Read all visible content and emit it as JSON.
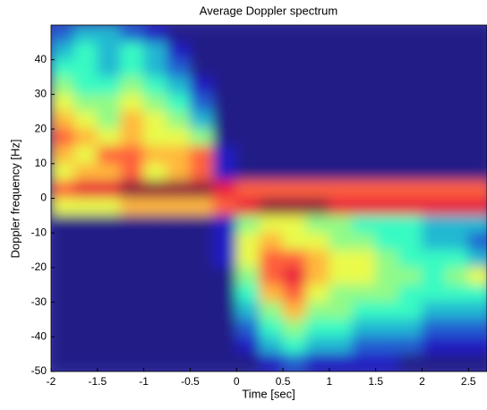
{
  "chart_data": {
    "type": "heatmap",
    "title": "Average Doppler spectrum",
    "x_label": "Time [sec]",
    "y_label": "Doppler frequency [Hz]",
    "x": [
      -1.875,
      -1.625,
      -1.375,
      -1.125,
      -0.875,
      -0.625,
      -0.375,
      -0.125,
      0.125,
      0.375,
      0.625,
      0.875,
      1.125,
      1.375,
      1.625,
      1.875,
      2.125,
      2.375,
      2.625
    ],
    "y": [
      47.5,
      42.5,
      37.5,
      32.5,
      27.5,
      22.5,
      17.5,
      12.5,
      7.5,
      2.5,
      -2.5,
      -7.5,
      -12.5,
      -17.5,
      -22.5,
      -27.5,
      -32.5,
      -37.5,
      -42.5,
      -47.5
    ],
    "z": [
      [
        2,
        3,
        3,
        2,
        1,
        0,
        0,
        0,
        0,
        0,
        0,
        0,
        0,
        0,
        0,
        0,
        0,
        0,
        0
      ],
      [
        3,
        4,
        3,
        4,
        3,
        1,
        0,
        0,
        0,
        0,
        0,
        0,
        0,
        0,
        0,
        0,
        0,
        0,
        0
      ],
      [
        4,
        4,
        3,
        4,
        3,
        2,
        0,
        0,
        0,
        0,
        0,
        0,
        0,
        0,
        0,
        0,
        0,
        0,
        0
      ],
      [
        5,
        4,
        4,
        5,
        4,
        3,
        1,
        0,
        0,
        0,
        0,
        0,
        0,
        0,
        0,
        0,
        0,
        0,
        0
      ],
      [
        6,
        5,
        5,
        6,
        5,
        4,
        2,
        0,
        0,
        0,
        0,
        0,
        0,
        0,
        0,
        0,
        0,
        0,
        0
      ],
      [
        7,
        6,
        5,
        7,
        6,
        5,
        3,
        0,
        0,
        0,
        0,
        0,
        0,
        0,
        0,
        0,
        0,
        0,
        0
      ],
      [
        8,
        7,
        6,
        7,
        6,
        6,
        5,
        0,
        0,
        0,
        0,
        0,
        0,
        0,
        0,
        0,
        0,
        0,
        0
      ],
      [
        7,
        6,
        8,
        8,
        7,
        7,
        8,
        1,
        0,
        0,
        0,
        0,
        0,
        0,
        0,
        0,
        0,
        0,
        0
      ],
      [
        6,
        7,
        7,
        8,
        6,
        7,
        8,
        1,
        0,
        0,
        0,
        0,
        0,
        0,
        0,
        0,
        0,
        0,
        0
      ],
      [
        8,
        9,
        9,
        10,
        10,
        10,
        10,
        9,
        8,
        8,
        8,
        8,
        8,
        8,
        8,
        8,
        8,
        8,
        8
      ],
      [
        6,
        6,
        6,
        7,
        7,
        7,
        7,
        8,
        9,
        10,
        10,
        10,
        9,
        9,
        9,
        9,
        9,
        9,
        9
      ],
      [
        0,
        0,
        0,
        0,
        0,
        0,
        0,
        1,
        5,
        6,
        6,
        5,
        5,
        4,
        4,
        4,
        3,
        3,
        3
      ],
      [
        0,
        0,
        0,
        0,
        0,
        0,
        0,
        1,
        6,
        7,
        6,
        6,
        5,
        5,
        4,
        4,
        3,
        3,
        2
      ],
      [
        0,
        0,
        0,
        0,
        0,
        0,
        0,
        1,
        6,
        8,
        8,
        7,
        6,
        6,
        5,
        4,
        4,
        4,
        3
      ],
      [
        0,
        0,
        0,
        0,
        0,
        0,
        0,
        0,
        5,
        8,
        9,
        7,
        6,
        6,
        5,
        5,
        4,
        5,
        6
      ],
      [
        0,
        0,
        0,
        0,
        0,
        0,
        0,
        0,
        4,
        7,
        8,
        6,
        5,
        5,
        5,
        4,
        4,
        4,
        4
      ],
      [
        0,
        0,
        0,
        0,
        0,
        0,
        0,
        0,
        3,
        5,
        7,
        5,
        5,
        4,
        4,
        4,
        3,
        3,
        3
      ],
      [
        0,
        0,
        0,
        0,
        0,
        0,
        0,
        0,
        2,
        4,
        5,
        4,
        4,
        3,
        3,
        3,
        2,
        2,
        2
      ],
      [
        0,
        0,
        0,
        0,
        0,
        0,
        0,
        0,
        1,
        3,
        4,
        3,
        3,
        2,
        2,
        2,
        1,
        1,
        1
      ],
      [
        0,
        0,
        0,
        0,
        0,
        0,
        0,
        0,
        0,
        1,
        2,
        1,
        1,
        1,
        1,
        0,
        0,
        0,
        0
      ]
    ],
    "xlim": [
      -2,
      2.7
    ],
    "ylim": [
      -50,
      50
    ],
    "xticks": [
      -2,
      -1.5,
      -1,
      -0.5,
      0,
      0.5,
      1,
      1.5,
      2,
      2.5
    ],
    "yticks": [
      -50,
      -40,
      -30,
      -20,
      -10,
      0,
      10,
      20,
      30,
      40
    ]
  }
}
